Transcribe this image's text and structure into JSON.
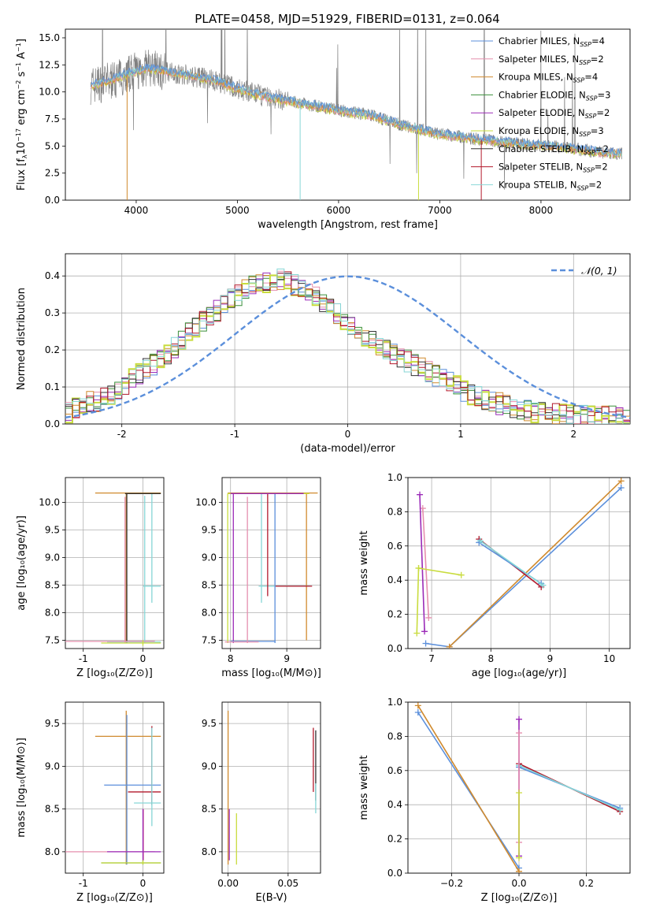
{
  "figure_title": "PLATE=0458, MJD=51929, FIBERID=0131, z=0.064",
  "colors": {
    "chabrier_miles": "#5B8FDB",
    "salpeter_miles": "#E58FAE",
    "kroupa_miles": "#D08A2E",
    "chabrier_elodie": "#3A8F3A",
    "salpeter_elodie": "#9B2BB8",
    "kroupa_elodie": "#C9DC3E",
    "chabrier_stelib": "#333333",
    "salpeter_stelib": "#B2182B",
    "kroupa_stelib": "#86D6D6",
    "data": "#808080",
    "normal": "#5B8FDB",
    "grid": "#b0b0b0"
  },
  "legend_spectrum": [
    {
      "label": "Chabrier MILES, N",
      "sub": "SSP",
      "eq": "=4",
      "color_key": "chabrier_miles"
    },
    {
      "label": "Salpeter MILES, N",
      "sub": "SSP",
      "eq": "=2",
      "color_key": "salpeter_miles"
    },
    {
      "label": "Kroupa MILES, N",
      "sub": "SSP",
      "eq": "=4",
      "color_key": "kroupa_miles"
    },
    {
      "label": "Chabrier ELODIE, N",
      "sub": "SSP",
      "eq": "=3",
      "color_key": "chabrier_elodie"
    },
    {
      "label": "Salpeter ELODIE, N",
      "sub": "SSP",
      "eq": "=2",
      "color_key": "salpeter_elodie"
    },
    {
      "label": "Kroupa ELODIE, N",
      "sub": "SSP",
      "eq": "=3",
      "color_key": "kroupa_elodie"
    },
    {
      "label": "Chabrier STELIB, N",
      "sub": "SSP",
      "eq": "=2",
      "color_key": "chabrier_stelib"
    },
    {
      "label": "Salpeter STELIB, N",
      "sub": "SSP",
      "eq": "=2",
      "color_key": "salpeter_stelib"
    },
    {
      "label": "Kroupa STELIB, N",
      "sub": "SSP",
      "eq": "=2",
      "color_key": "kroupa_stelib"
    }
  ],
  "legend_normal": "𝒩(0, 1)",
  "chart_data": [
    {
      "id": "spectrum",
      "type": "line",
      "xlabel": "wavelength [Angstrom, rest frame]",
      "ylabel_html": "Flux [f<tspan font-size='8' baseline-shift='-3'>λ</tspan>10<tspan font-size='8' baseline-shift='5'>−17</tspan> erg cm<tspan font-size='8' baseline-shift='5'>−2</tspan> s<tspan font-size='8' baseline-shift='5'>−1</tspan> A<tspan font-size='8' baseline-shift='5'>−1</tspan>]",
      "xlim": [
        3300,
        8880
      ],
      "ylim": [
        0,
        15.8
      ],
      "xticks": [
        4000,
        5000,
        6000,
        7000,
        8000
      ],
      "yticks": [
        0.0,
        2.5,
        5.0,
        7.5,
        10.0,
        12.5,
        15.0
      ],
      "data_range": [
        3550,
        8800
      ],
      "model_continuum": [
        [
          3550,
          10.6
        ],
        [
          3700,
          10.9
        ],
        [
          3900,
          11.6
        ],
        [
          4100,
          12.2
        ],
        [
          4300,
          11.9
        ],
        [
          4500,
          11.6
        ],
        [
          4800,
          11.0
        ],
        [
          5000,
          10.3
        ],
        [
          5300,
          9.5
        ],
        [
          5600,
          9.0
        ],
        [
          6000,
          8.3
        ],
        [
          6300,
          7.9
        ],
        [
          6600,
          7.0
        ],
        [
          7000,
          6.1
        ],
        [
          7400,
          5.6
        ],
        [
          7800,
          5.2
        ],
        [
          8200,
          4.9
        ],
        [
          8600,
          4.4
        ],
        [
          8800,
          4.3
        ]
      ]
    },
    {
      "id": "residuals",
      "type": "histogram",
      "xlabel": "(data-model)/error",
      "ylabel": "Normed distribution",
      "xlim": [
        -2.5,
        2.5
      ],
      "ylim": [
        0,
        0.46
      ],
      "xticks": [
        -2,
        -1,
        0,
        1,
        2
      ],
      "yticks": [
        0.0,
        0.1,
        0.2,
        0.3,
        0.4
      ],
      "bin_width": 0.1,
      "envelope": [
        0.03,
        0.045,
        0.05,
        0.06,
        0.062,
        0.07,
        0.08,
        0.095,
        0.11,
        0.12,
        0.135,
        0.15,
        0.16,
        0.17,
        0.19,
        0.205,
        0.225,
        0.245,
        0.26,
        0.275,
        0.29,
        0.305,
        0.32,
        0.335,
        0.35,
        0.36,
        0.37,
        0.38,
        0.385,
        0.39,
        0.39,
        0.385,
        0.375,
        0.365,
        0.355,
        0.345,
        0.33,
        0.31,
        0.295,
        0.28,
        0.265,
        0.25,
        0.235,
        0.225,
        0.21,
        0.2,
        0.19,
        0.18,
        0.17,
        0.16,
        0.15,
        0.14,
        0.13,
        0.12,
        0.112,
        0.1,
        0.09,
        0.08,
        0.072,
        0.065,
        0.06,
        0.055,
        0.05,
        0.045,
        0.04,
        0.037,
        0.034,
        0.031,
        0.03,
        0.028,
        0.026,
        0.024,
        0.022,
        0.021,
        0.02,
        0.02,
        0.019,
        0.02,
        0.02,
        0.018
      ]
    },
    {
      "id": "age_vs_Z",
      "type": "errorbar",
      "xlabel": "Z [log₁₀(Z/Z⊙)]",
      "ylabel": "age  [log₁₀(age/yr)]",
      "xlim": [
        -1.3,
        0.35
      ],
      "ylim": [
        7.35,
        10.45
      ],
      "xticks": [
        -1,
        0
      ],
      "yticks": [
        7.5,
        8.0,
        8.5,
        9.0,
        9.5,
        10.0
      ],
      "ytick_labels": [
        "7.5",
        "8.0",
        "8.5",
        "9.0",
        "9.5",
        "10.0"
      ],
      "segments": [
        {
          "c": "kroupa_miles",
          "h": [
            -0.8,
            0.3,
            10.17
          ],
          "v": [
            -0.28,
            7.45,
            10.17
          ]
        },
        {
          "c": "chabrier_stelib",
          "h": [
            -0.3,
            0.3,
            10.16
          ],
          "v": [
            -0.27,
            7.45,
            10.16
          ]
        },
        {
          "c": "kroupa_stelib",
          "h": [
            0.0,
            0.3,
            8.48
          ],
          "v": [
            0.15,
            8.18,
            10.15
          ]
        },
        {
          "c": "kroupa_stelib",
          "h": [
            -0.6,
            0.3,
            7.47
          ],
          "v": [
            0.03,
            7.45,
            10.12
          ]
        },
        {
          "c": "salpeter_miles",
          "h": [
            -1.3,
            0.2,
            7.48
          ],
          "v": [
            -0.3,
            7.45,
            10.1
          ]
        },
        {
          "c": "kroupa_elodie",
          "h": [
            -0.7,
            0.3,
            7.45
          ],
          "v": [
            0.0,
            7.4,
            7.5
          ]
        }
      ]
    },
    {
      "id": "age_vs_mass",
      "type": "errorbar",
      "xlabel": "mass [log₁₀(M/M⊙)]",
      "ylabel": "",
      "xlim": [
        7.85,
        9.6
      ],
      "ylim": [
        7.35,
        10.45
      ],
      "xticks": [
        8,
        9
      ],
      "yticks": [
        7.5,
        8.0,
        8.5,
        9.0,
        9.5,
        10.0
      ],
      "ytick_labels": [
        "7.5",
        "8.0",
        "8.5",
        "9.0",
        "9.5",
        "10.0"
      ],
      "segments": [
        {
          "c": "kroupa_miles",
          "h": [
            7.95,
            9.55,
            10.17
          ],
          "v": [
            9.35,
            7.5,
            10.17
          ]
        },
        {
          "c": "kroupa_elodie",
          "h": [
            7.95,
            9.4,
            10.16
          ],
          "v": [
            7.95,
            7.45,
            10.16
          ]
        },
        {
          "c": "salpeter_elodie",
          "h": [
            8.0,
            9.3,
            10.16
          ],
          "v": [
            8.05,
            7.45,
            10.16
          ]
        },
        {
          "c": "kroupa_stelib",
          "h": [
            8.5,
            9.4,
            8.48
          ],
          "v": [
            8.55,
            8.18,
            10.15
          ]
        },
        {
          "c": "salpeter_stelib",
          "h": [
            8.8,
            9.45,
            8.48
          ],
          "v": [
            8.66,
            8.3,
            10.15
          ]
        },
        {
          "c": "chabrier_miles",
          "h": [
            8.0,
            8.8,
            7.48
          ],
          "v": [
            8.79,
            7.45,
            10.15
          ]
        },
        {
          "c": "salpeter_miles",
          "h": [
            7.9,
            8.5,
            7.47
          ],
          "v": [
            8.3,
            7.45,
            10.1
          ]
        }
      ]
    },
    {
      "id": "weight_vs_age",
      "type": "line",
      "xlabel": "age  [log₁₀(age/yr)]",
      "ylabel": "mass weight",
      "xlim": [
        6.6,
        10.35
      ],
      "ylim": [
        0,
        1.0
      ],
      "xticks": [
        7,
        8,
        9,
        10
      ],
      "yticks": [
        0.0,
        0.2,
        0.4,
        0.6,
        0.8,
        1.0
      ],
      "series": [
        {
          "c": "chabrier_miles",
          "x": [
            6.9,
            7.3,
            10.2
          ],
          "y": [
            0.03,
            0.01,
            0.94
          ]
        },
        {
          "c": "kroupa_miles",
          "x": [
            7.3,
            10.2
          ],
          "y": [
            0.01,
            0.98
          ]
        },
        {
          "c": "salpeter_miles",
          "x": [
            6.85,
            6.95
          ],
          "y": [
            0.82,
            0.18
          ]
        },
        {
          "c": "salpeter_elodie",
          "x": [
            6.8,
            6.88
          ],
          "y": [
            0.9,
            0.1
          ]
        },
        {
          "c": "kroupa_elodie",
          "x": [
            6.78,
            7.5
          ],
          "y": [
            0.47,
            0.43
          ]
        },
        {
          "c": "kroupa_elodie",
          "x": [
            6.75,
            6.78
          ],
          "y": [
            0.09,
            0.47
          ]
        },
        {
          "c": "salpeter_stelib",
          "x": [
            7.8,
            8.85
          ],
          "y": [
            0.64,
            0.36
          ]
        },
        {
          "c": "chabrier_miles",
          "x": [
            7.8,
            8.85
          ],
          "y": [
            0.62,
            0.38
          ]
        },
        {
          "c": "kroupa_stelib",
          "x": [
            7.82,
            8.88
          ],
          "y": [
            0.63,
            0.37
          ]
        }
      ]
    },
    {
      "id": "mass_vs_Z",
      "type": "errorbar",
      "xlabel": "Z [log₁₀(Z/Z⊙)]",
      "ylabel": "mass [log₁₀(M/M⊙)]",
      "xlim": [
        -1.3,
        0.35
      ],
      "ylim": [
        7.75,
        9.75
      ],
      "xticks": [
        -1,
        0
      ],
      "yticks": [
        8.0,
        8.5,
        9.0,
        9.5
      ],
      "ytick_labels": [
        "8.0",
        "8.5",
        "9.0",
        "9.5"
      ],
      "segments": [
        {
          "c": "kroupa_miles",
          "h": [
            -0.8,
            0.3,
            9.35
          ],
          "v": [
            -0.28,
            7.85,
            9.65
          ]
        },
        {
          "c": "chabrier_miles",
          "h": [
            -0.65,
            0.3,
            8.78
          ],
          "v": [
            -0.27,
            7.85,
            9.6
          ]
        },
        {
          "c": "salpeter_stelib",
          "h": [
            -0.25,
            0.3,
            8.7
          ],
          "v": [
            0.15,
            8.55,
            9.47
          ]
        },
        {
          "c": "kroupa_stelib",
          "h": [
            -0.15,
            0.3,
            8.57
          ],
          "v": [
            0.15,
            8.3,
            9.45
          ]
        },
        {
          "c": "salpeter_miles",
          "h": [
            -1.3,
            0.2,
            8.0
          ],
          "v": [
            0.01,
            7.9,
            8.5
          ]
        },
        {
          "c": "salpeter_elodie",
          "h": [
            -0.6,
            0.3,
            8.0
          ],
          "v": [
            0.0,
            7.9,
            8.5
          ]
        },
        {
          "c": "chabrier_elodie",
          "h": [
            -0.7,
            0.3,
            7.87
          ],
          "v": [
            0.0,
            7.85,
            7.9
          ]
        },
        {
          "c": "kroupa_elodie",
          "h": [
            -0.7,
            0.3,
            7.87
          ],
          "v": [
            0.0,
            7.85,
            7.9
          ]
        }
      ]
    },
    {
      "id": "mass_vs_ebv",
      "type": "errorbar",
      "xlabel": "E(B-V)",
      "ylabel": "",
      "xlim": [
        -0.005,
        0.077
      ],
      "ylim": [
        7.75,
        9.75
      ],
      "xticks": [
        0.0,
        0.05
      ],
      "xtick_labels": [
        "0.00",
        "0.05"
      ],
      "yticks": [
        8.0,
        8.5,
        9.0,
        9.5
      ],
      "ytick_labels": [
        "8.0",
        "8.5",
        "9.0",
        "9.5"
      ],
      "segments": [
        {
          "c": "kroupa_miles",
          "v": [
            0.0,
            7.85,
            9.65
          ]
        },
        {
          "c": "salpeter_elodie",
          "v": [
            0.001,
            7.9,
            8.5
          ]
        },
        {
          "c": "kroupa_elodie",
          "v": [
            0.007,
            7.85,
            8.45
          ]
        },
        {
          "c": "salpeter_stelib",
          "v": [
            0.071,
            8.7,
            9.45
          ]
        },
        {
          "c": "chabrier_stelib",
          "v": [
            0.073,
            8.6,
            9.42
          ]
        },
        {
          "c": "kroupa_stelib",
          "v": [
            0.073,
            8.45,
            8.8
          ]
        }
      ]
    },
    {
      "id": "weight_vs_Z",
      "type": "line",
      "xlabel": "Z [log₁₀(Z/Z⊙)]",
      "ylabel": "mass weight",
      "xlim": [
        -0.33,
        0.33
      ],
      "ylim": [
        0,
        1.0
      ],
      "xticks": [
        -0.2,
        0.0,
        0.2
      ],
      "xtick_labels": [
        "−0.2",
        "0.0",
        "0.2"
      ],
      "yticks": [
        0.0,
        0.2,
        0.4,
        0.6,
        0.8,
        1.0
      ],
      "series": [
        {
          "c": "chabrier_miles",
          "x": [
            -0.3,
            0.0
          ],
          "y": [
            0.94,
            0.03
          ]
        },
        {
          "c": "kroupa_miles",
          "x": [
            -0.3,
            0.0
          ],
          "y": [
            0.98,
            0.01
          ]
        },
        {
          "c": "salpeter_stelib",
          "x": [
            0.0,
            0.3
          ],
          "y": [
            0.64,
            0.36
          ]
        },
        {
          "c": "chabrier_miles",
          "x": [
            0.0,
            0.3
          ],
          "y": [
            0.62,
            0.38
          ]
        },
        {
          "c": "kroupa_stelib",
          "x": [
            0.0,
            0.3
          ],
          "y": [
            0.63,
            0.37
          ]
        },
        {
          "c": "salpeter_elodie",
          "x": [
            0.0,
            0.0
          ],
          "y": [
            0.1,
            0.9
          ]
        },
        {
          "c": "salpeter_miles",
          "x": [
            0.0,
            0.0
          ],
          "y": [
            0.18,
            0.82
          ]
        },
        {
          "c": "kroupa_elodie",
          "x": [
            0.0,
            0.0
          ],
          "y": [
            0.09,
            0.47
          ]
        }
      ]
    }
  ]
}
